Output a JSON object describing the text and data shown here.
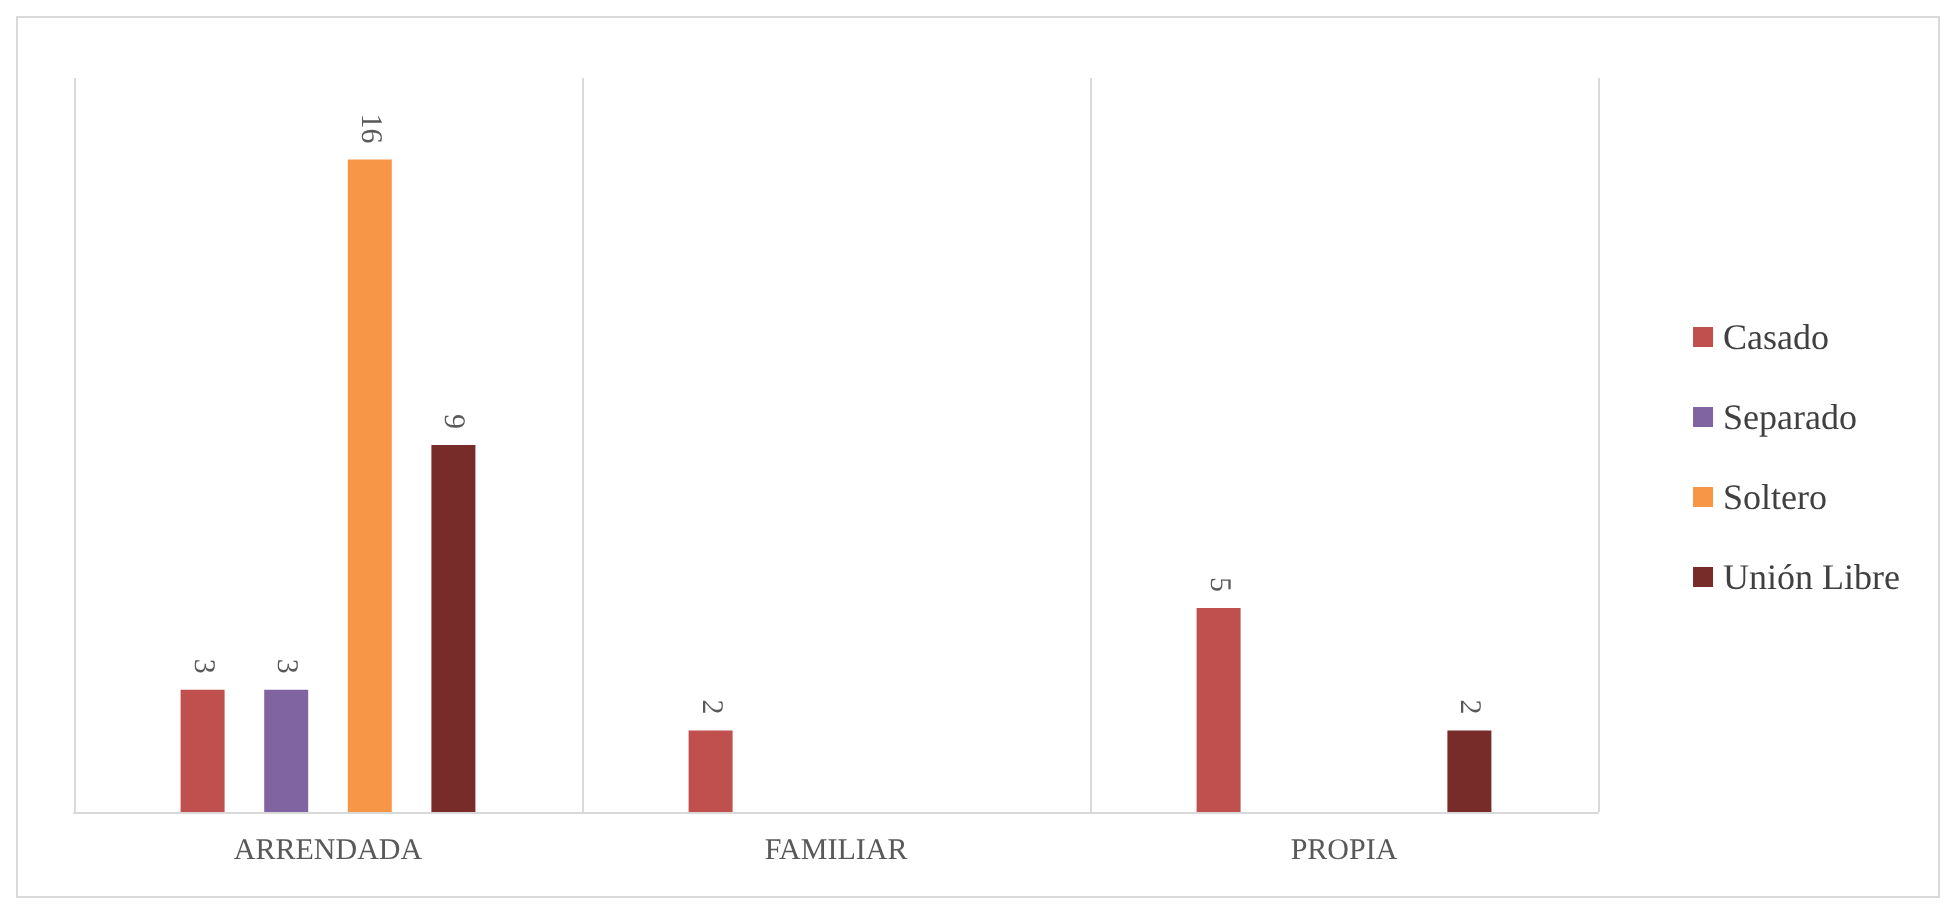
{
  "chart_data": {
    "type": "bar",
    "categories": [
      "ARRENDADA",
      "FAMILIAR",
      "PROPIA"
    ],
    "series": [
      {
        "name": "Casado",
        "color": "#c0504d",
        "values": [
          3,
          2,
          5
        ]
      },
      {
        "name": "Separado",
        "color": "#8064a2",
        "values": [
          3,
          null,
          null
        ]
      },
      {
        "name": "Soltero",
        "color": "#f79646",
        "values": [
          16,
          null,
          null
        ]
      },
      {
        "name": "Unión Libre",
        "color": "#772c2a",
        "values": [
          9,
          null,
          2
        ]
      }
    ],
    "ylim": [
      0,
      18
    ],
    "tick_labels": "x",
    "data_labels": true,
    "grid": "x",
    "legend": "right"
  }
}
